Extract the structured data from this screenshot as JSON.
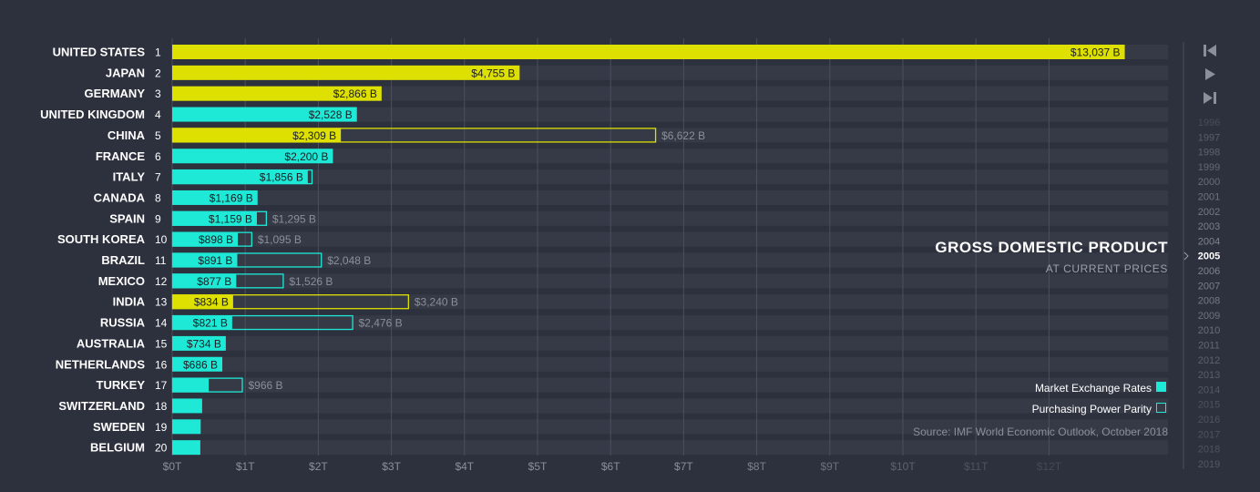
{
  "chart_data": {
    "type": "bar",
    "title": "GROSS DOMESTIC PRODUCT",
    "subtitle": "AT CURRENT PRICES",
    "xlim": [
      0,
      13
    ],
    "x_ticks": [
      "$0T",
      "$1T",
      "$2T",
      "$3T",
      "$4T",
      "$5T",
      "$6T",
      "$7T",
      "$8T",
      "$9T",
      "$10T",
      "$11T",
      "$12T"
    ],
    "current_year": "2005",
    "years": [
      "1996",
      "1997",
      "1998",
      "1999",
      "2000",
      "2001",
      "2002",
      "2003",
      "2004",
      "2005",
      "2006",
      "2007",
      "2008",
      "2009",
      "2010",
      "2011",
      "2012",
      "2013",
      "2014",
      "2015",
      "2016",
      "2017",
      "2018",
      "2019"
    ],
    "series": [
      {
        "name": "Market Exchange Rates"
      },
      {
        "name": "Purchasing Power Parity"
      }
    ],
    "rows": [
      {
        "rank": "1",
        "country": "UNITED STATES",
        "mer": 13037,
        "ppp": null,
        "mer_label": "$13,037 B",
        "ppp_label": "",
        "color": "#dde000"
      },
      {
        "rank": "2",
        "country": "JAPAN",
        "mer": 4755,
        "ppp": null,
        "mer_label": "$4,755 B",
        "ppp_label": "",
        "color": "#dde000"
      },
      {
        "rank": "3",
        "country": "GERMANY",
        "mer": 2866,
        "ppp": null,
        "mer_label": "$2,866 B",
        "ppp_label": "",
        "color": "#dde000"
      },
      {
        "rank": "4",
        "country": "UNITED KINGDOM",
        "mer": 2528,
        "ppp": null,
        "mer_label": "$2,528 B",
        "ppp_label": "",
        "color": "#1de9d6"
      },
      {
        "rank": "5",
        "country": "CHINA",
        "mer": 2309,
        "ppp": 6622,
        "mer_label": "$2,309 B",
        "ppp_label": "$6,622 B",
        "color": "#dde000"
      },
      {
        "rank": "6",
        "country": "FRANCE",
        "mer": 2200,
        "ppp": null,
        "mer_label": "$2,200 B",
        "ppp_label": "",
        "color": "#1de9d6"
      },
      {
        "rank": "7",
        "country": "ITALY",
        "mer": 1856,
        "ppp": 1920,
        "mer_label": "$1,856 B",
        "ppp_label": "",
        "color": "#1de9d6"
      },
      {
        "rank": "8",
        "country": "CANADA",
        "mer": 1169,
        "ppp": null,
        "mer_label": "$1,169 B",
        "ppp_label": "",
        "color": "#1de9d6"
      },
      {
        "rank": "9",
        "country": "SPAIN",
        "mer": 1159,
        "ppp": 1295,
        "mer_label": "$1,159 B",
        "ppp_label": "$1,295 B",
        "color": "#1de9d6"
      },
      {
        "rank": "10",
        "country": "SOUTH KOREA",
        "mer": 898,
        "ppp": 1095,
        "mer_label": "$898 B",
        "ppp_label": "$1,095 B",
        "color": "#1de9d6"
      },
      {
        "rank": "11",
        "country": "BRAZIL",
        "mer": 891,
        "ppp": 2048,
        "mer_label": "$891 B",
        "ppp_label": "$2,048 B",
        "color": "#1de9d6"
      },
      {
        "rank": "12",
        "country": "MEXICO",
        "mer": 877,
        "ppp": 1526,
        "mer_label": "$877 B",
        "ppp_label": "$1,526 B",
        "color": "#1de9d6"
      },
      {
        "rank": "13",
        "country": "INDIA",
        "mer": 834,
        "ppp": 3240,
        "mer_label": "$834 B",
        "ppp_label": "$3,240 B",
        "color": "#dde000"
      },
      {
        "rank": "14",
        "country": "RUSSIA",
        "mer": 821,
        "ppp": 2476,
        "mer_label": "$821 B",
        "ppp_label": "$2,476 B",
        "color": "#1de9d6"
      },
      {
        "rank": "15",
        "country": "AUSTRALIA",
        "mer": 734,
        "ppp": null,
        "mer_label": "$734 B",
        "ppp_label": "",
        "color": "#1de9d6"
      },
      {
        "rank": "16",
        "country": "NETHERLANDS",
        "mer": 686,
        "ppp": null,
        "mer_label": "$686 B",
        "ppp_label": "",
        "color": "#1de9d6"
      },
      {
        "rank": "17",
        "country": "TURKEY",
        "mer": 500,
        "ppp": 966,
        "mer_label": "",
        "ppp_label": "$966 B",
        "color": "#1de9d6"
      },
      {
        "rank": "18",
        "country": "SWITZERLAND",
        "mer": 410,
        "ppp": null,
        "mer_label": "",
        "ppp_label": "",
        "color": "#1de9d6"
      },
      {
        "rank": "19",
        "country": "SWEDEN",
        "mer": 390,
        "ppp": null,
        "mer_label": "",
        "ppp_label": "",
        "color": "#1de9d6"
      },
      {
        "rank": "20",
        "country": "BELGIUM",
        "mer": 385,
        "ppp": null,
        "mer_label": "",
        "ppp_label": "",
        "color": "#1de9d6"
      }
    ]
  },
  "legend": {
    "mer_label": "Market Exchange Rates",
    "ppp_label": "Purchasing Power Parity",
    "mer_color": "#1de9d6"
  },
  "source": "Source: IMF World Economic Outlook, October 2018",
  "controls": {
    "first_icon": "skip-back-icon",
    "play_icon": "play-icon",
    "last_icon": "skip-forward-icon"
  },
  "colors": {
    "background": "#2c313d",
    "row_band": "#353a46",
    "yellow": "#dde000",
    "cyan": "#1de9d6"
  }
}
